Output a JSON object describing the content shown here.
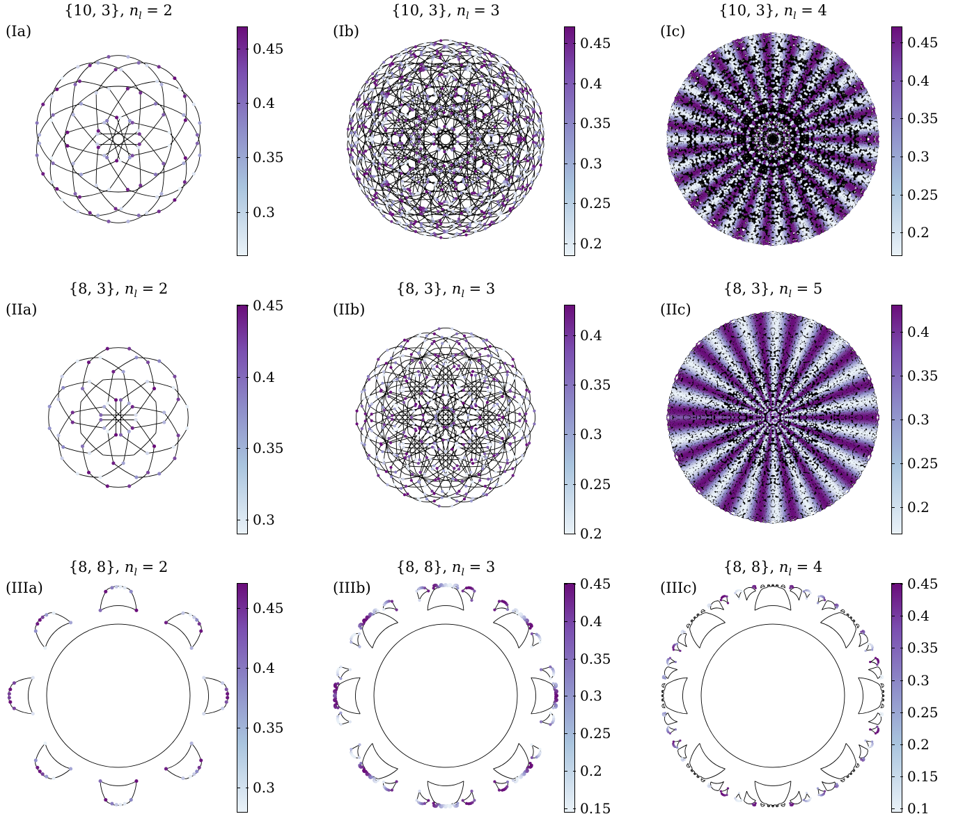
{
  "panels": [
    {
      "title_set": "{10, 3}",
      "n_l": "2",
      "label": "(Ia)",
      "p": 10,
      "q": 3,
      "levels": 2,
      "cmin": 0.26,
      "cmax": 0.47,
      "ticks": [
        "0.3",
        "0.35",
        "0.4",
        "0.45"
      ]
    },
    {
      "title_set": "{10, 3}",
      "n_l": "3",
      "label": "(Ib)",
      "p": 10,
      "q": 3,
      "levels": 3,
      "cmin": 0.185,
      "cmax": 0.47,
      "ticks": [
        "0.2",
        "0.25",
        "0.3",
        "0.35",
        "0.4",
        "0.45"
      ]
    },
    {
      "title_set": "{10, 3}",
      "n_l": "4",
      "label": "(Ic)",
      "p": 10,
      "q": 3,
      "levels": 4,
      "cmin": 0.17,
      "cmax": 0.47,
      "ticks": [
        "0.2",
        "0.25",
        "0.3",
        "0.35",
        "0.4",
        "0.45"
      ]
    },
    {
      "title_set": "{8, 3}",
      "n_l": "2",
      "label": "(IIa)",
      "p": 8,
      "q": 3,
      "levels": 2,
      "cmin": 0.29,
      "cmax": 0.45,
      "ticks": [
        "0.3",
        "0.35",
        "0.4",
        "0.45"
      ]
    },
    {
      "title_set": "{8, 3}",
      "n_l": "3",
      "label": "(IIb)",
      "p": 8,
      "q": 3,
      "levels": 3,
      "cmin": 0.2,
      "cmax": 0.43,
      "ticks": [
        "0.2",
        "0.25",
        "0.3",
        "0.35",
        "0.4"
      ]
    },
    {
      "title_set": "{8, 3}",
      "n_l": "5",
      "label": "(IIc)",
      "p": 8,
      "q": 3,
      "levels": 5,
      "cmin": 0.17,
      "cmax": 0.43,
      "ticks": [
        "0.2",
        "0.25",
        "0.3",
        "0.35",
        "0.4"
      ]
    },
    {
      "title_set": "{8, 8}",
      "n_l": "2",
      "label": "(IIIa)",
      "p": 8,
      "q": 8,
      "levels": 2,
      "cmin": 0.28,
      "cmax": 0.47,
      "ticks": [
        "0.3",
        "0.35",
        "0.4",
        "0.45"
      ]
    },
    {
      "title_set": "{8, 8}",
      "n_l": "3",
      "label": "(IIIb)",
      "p": 8,
      "q": 8,
      "levels": 3,
      "cmin": 0.145,
      "cmax": 0.45,
      "ticks": [
        "0.15",
        "0.2",
        "0.25",
        "0.3",
        "0.35",
        "0.4",
        "0.45"
      ]
    },
    {
      "title_set": "{8, 8}",
      "n_l": "4",
      "label": "(IIIc)",
      "p": 8,
      "q": 8,
      "levels": 4,
      "cmin": 0.095,
      "cmax": 0.45,
      "ticks": [
        "0.1",
        "0.15",
        "0.2",
        "0.25",
        "0.3",
        "0.35",
        "0.4",
        "0.45"
      ]
    }
  ],
  "colors": {
    "low": "#eaf2f8",
    "mid": "#8e8dc9",
    "high": "#6a0d7a",
    "edge": "#000000"
  }
}
